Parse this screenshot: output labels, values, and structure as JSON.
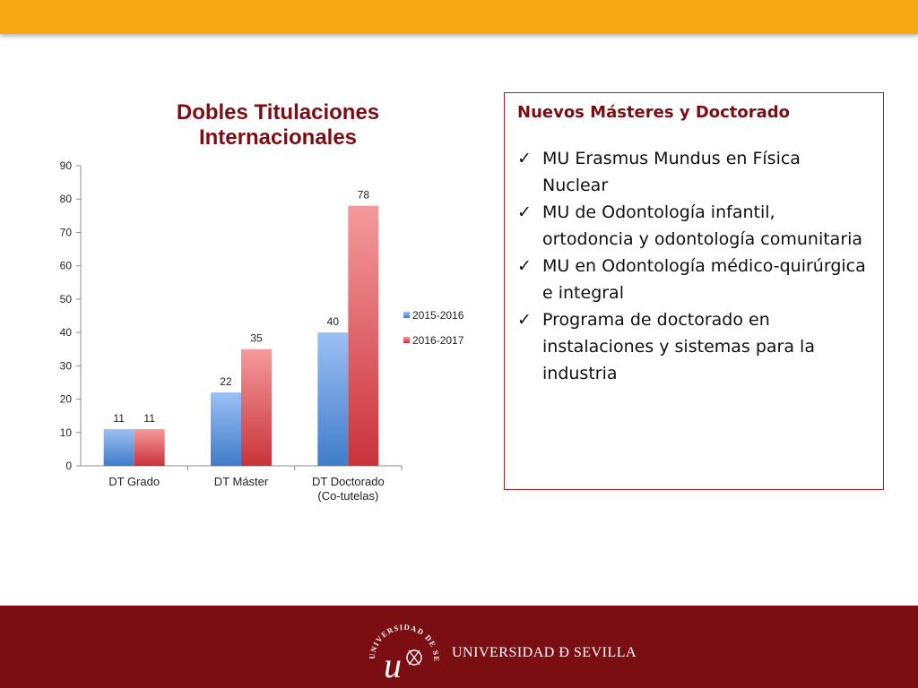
{
  "chart_data": {
    "type": "bar",
    "title": "Dobles Titulaciones Internacionales",
    "categories": [
      [
        "DT Grado"
      ],
      [
        "DT Máster"
      ],
      [
        "DT Doctorado",
        "(Co-tutelas)"
      ]
    ],
    "series": [
      {
        "name": "2015-2016",
        "values": [
          11,
          22,
          40
        ],
        "color": "#4f81bd"
      },
      {
        "name": "2016-2017",
        "values": [
          11,
          35,
          78
        ],
        "color": "#d2373c"
      }
    ],
    "ylim": [
      0,
      90
    ],
    "yticks": [
      0,
      10,
      20,
      30,
      40,
      50,
      60,
      70,
      80,
      90
    ],
    "legend_position": "right",
    "grid": false
  },
  "info_box": {
    "title": "Nuevos Másteres y Doctorado",
    "check_symbol": "✓",
    "items": [
      "MU Erasmus Mundus en Física Nuclear",
      "MU de Odontología infantil, ortodoncia y odontología comunitaria",
      "MU en Odontología médico-quirúrgica e integral",
      "Programa de doctorado en instalaciones y sistemas para la industria"
    ]
  },
  "footer": {
    "logo_text": "UNIVERSIDAD Ð SEVILLA",
    "seal_text": "UNIVERSIDAD DE SEVILLA"
  },
  "colors": {
    "top_bar": "#f6a912",
    "bottom_band": "#7b0e13",
    "title": "#7b0e13",
    "box_border": "#b01c22"
  }
}
